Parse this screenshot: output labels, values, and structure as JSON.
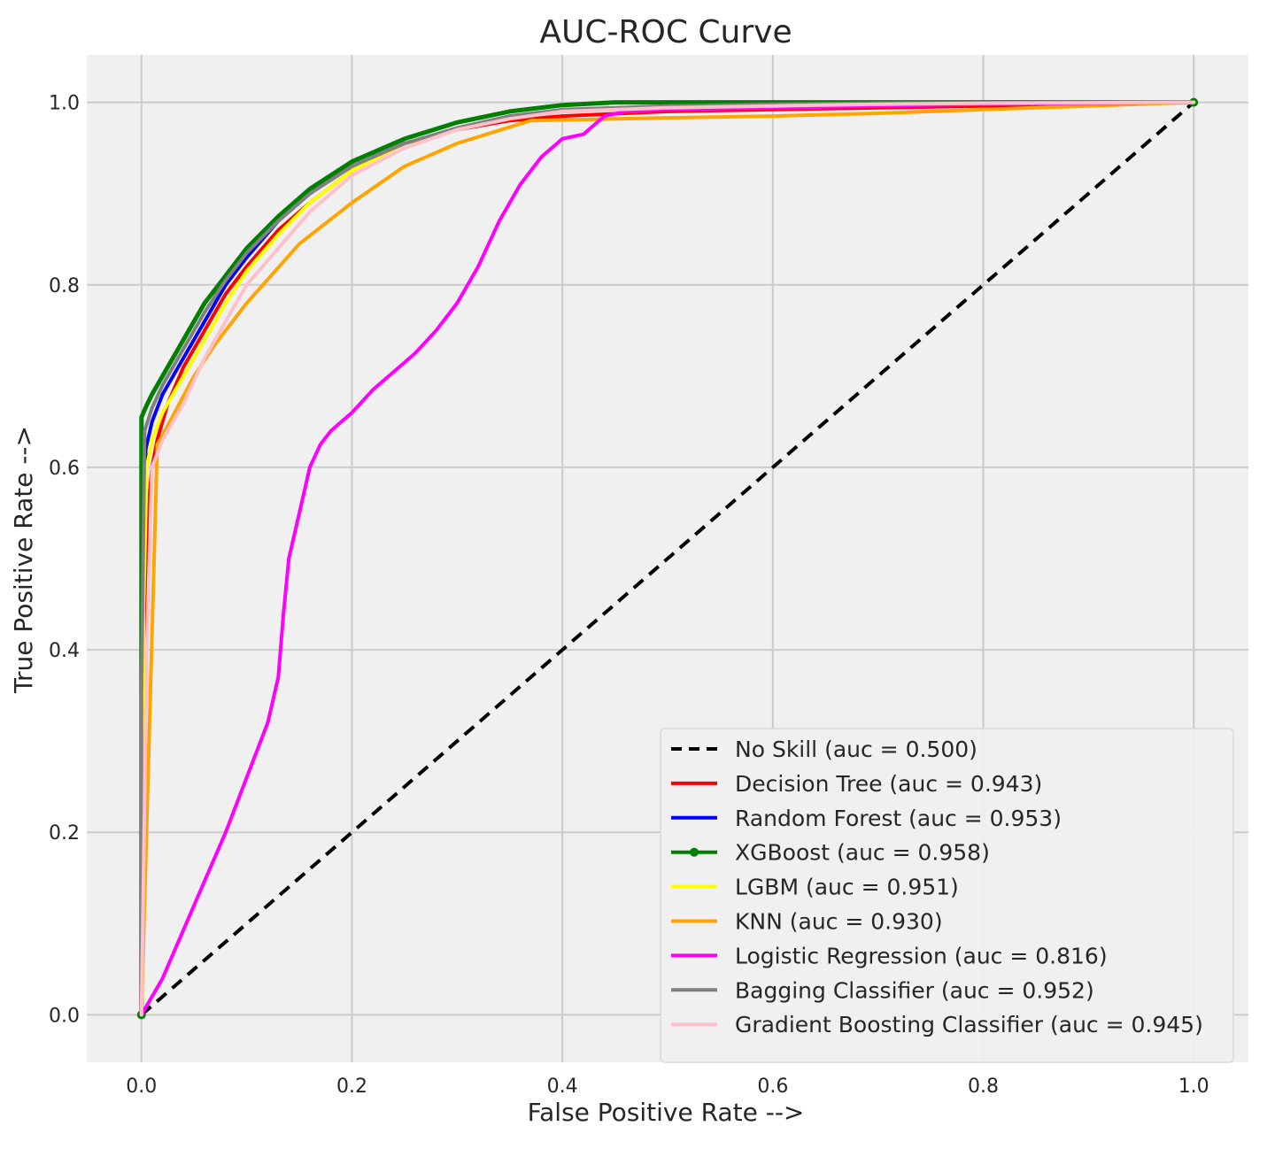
{
  "chart_data": {
    "type": "line",
    "title": "AUC-ROC Curve",
    "xlabel": "False Positive Rate -->",
    "ylabel": "True Positive Rate -->",
    "xlim": [
      -0.052,
      1.052
    ],
    "ylim": [
      -0.052,
      1.052
    ],
    "xticks": [
      "0.0",
      "0.2",
      "0.4",
      "0.6",
      "0.8",
      "1.0"
    ],
    "yticks": [
      "0.0",
      "0.2",
      "0.4",
      "0.6",
      "0.8",
      "1.0"
    ],
    "grid": true,
    "background": "#f0f0f0",
    "legend_position": "lower-right",
    "series": [
      {
        "name": "No Skill (auc = 0.500)",
        "color": "#000000",
        "style": "dashed",
        "x": [
          0,
          1
        ],
        "y": [
          0,
          1
        ]
      },
      {
        "name": "Decision Tree (auc = 0.943)",
        "color": "#ff0000",
        "style": "solid",
        "x": [
          0,
          0.003,
          0.006,
          0.01,
          0.015,
          0.025,
          0.04,
          0.06,
          0.08,
          0.1,
          0.13,
          0.16,
          0.2,
          0.25,
          0.3,
          0.35,
          0.4,
          0.5,
          0.6,
          0.7,
          0.8,
          0.9,
          1
        ],
        "y": [
          0,
          0.35,
          0.55,
          0.6,
          0.63,
          0.67,
          0.71,
          0.75,
          0.79,
          0.82,
          0.86,
          0.89,
          0.925,
          0.955,
          0.97,
          0.98,
          0.985,
          0.99,
          0.992,
          0.994,
          0.996,
          0.998,
          1
        ]
      },
      {
        "name": "Random Forest (auc = 0.953)",
        "color": "#0000ff",
        "style": "solid",
        "x": [
          0,
          0.002,
          0.004,
          0.01,
          0.02,
          0.04,
          0.06,
          0.08,
          0.1,
          0.13,
          0.16,
          0.2,
          0.25,
          0.3,
          0.35,
          0.4,
          0.5,
          0.6,
          0.7,
          0.8,
          0.9,
          1
        ],
        "y": [
          0,
          0.5,
          0.62,
          0.65,
          0.68,
          0.72,
          0.76,
          0.8,
          0.83,
          0.87,
          0.9,
          0.93,
          0.955,
          0.97,
          0.983,
          0.99,
          0.995,
          0.997,
          0.998,
          0.999,
          0.9995,
          1
        ]
      },
      {
        "name": "XGBoost (auc = 0.958)",
        "color": "#008000",
        "style": "solid-marker",
        "x": [
          0,
          0,
          0.005,
          0.01,
          0.02,
          0.04,
          0.06,
          0.08,
          0.1,
          0.13,
          0.16,
          0.2,
          0.25,
          0.3,
          0.35,
          0.4,
          0.45,
          0.5,
          0.6,
          0.7,
          0.8,
          0.9,
          1
        ],
        "y": [
          0,
          0.655,
          0.668,
          0.68,
          0.7,
          0.74,
          0.78,
          0.81,
          0.84,
          0.875,
          0.905,
          0.935,
          0.96,
          0.978,
          0.99,
          0.997,
          1,
          1,
          1,
          1,
          1,
          1,
          1
        ]
      },
      {
        "name": "LGBM (auc = 0.951)",
        "color": "#ffff00",
        "style": "solid",
        "x": [
          0,
          0.002,
          0.005,
          0.01,
          0.02,
          0.04,
          0.06,
          0.08,
          0.1,
          0.13,
          0.16,
          0.2,
          0.25,
          0.3,
          0.35,
          0.4,
          0.5,
          0.6,
          0.7,
          0.8,
          0.9,
          1
        ],
        "y": [
          0,
          0.45,
          0.6,
          0.63,
          0.66,
          0.7,
          0.74,
          0.78,
          0.815,
          0.855,
          0.89,
          0.925,
          0.955,
          0.97,
          0.983,
          0.99,
          0.995,
          0.997,
          0.998,
          0.999,
          0.9995,
          1
        ]
      },
      {
        "name": "KNN (auc = 0.930)",
        "color": "#ffa500",
        "style": "solid",
        "x": [
          0,
          0.015,
          0.02,
          0.05,
          0.07,
          0.1,
          0.15,
          0.2,
          0.25,
          0.3,
          0.37,
          0.5,
          0.6,
          0.7,
          0.8,
          0.9,
          1
        ],
        "y": [
          0,
          0.625,
          0.635,
          0.7,
          0.735,
          0.78,
          0.845,
          0.89,
          0.93,
          0.955,
          0.98,
          0.983,
          0.985,
          0.988,
          0.992,
          0.996,
          1
        ]
      },
      {
        "name": "Logistic Regression (auc = 0.816)",
        "color": "#ff00ff",
        "style": "solid",
        "x": [
          0,
          0.02,
          0.05,
          0.08,
          0.1,
          0.12,
          0.13,
          0.135,
          0.14,
          0.15,
          0.16,
          0.17,
          0.18,
          0.2,
          0.22,
          0.24,
          0.26,
          0.28,
          0.3,
          0.32,
          0.34,
          0.36,
          0.38,
          0.4,
          0.42,
          0.43,
          0.44,
          0.46,
          0.5,
          0.6,
          0.7,
          0.8,
          0.9,
          1
        ],
        "y": [
          0,
          0.04,
          0.12,
          0.2,
          0.26,
          0.32,
          0.37,
          0.44,
          0.5,
          0.55,
          0.6,
          0.625,
          0.64,
          0.66,
          0.685,
          0.705,
          0.725,
          0.75,
          0.78,
          0.82,
          0.87,
          0.91,
          0.94,
          0.96,
          0.965,
          0.975,
          0.985,
          0.99,
          0.992,
          0.994,
          0.996,
          0.998,
          0.999,
          1
        ]
      },
      {
        "name": "Bagging Classifier (auc = 0.952)",
        "color": "#808080",
        "style": "solid",
        "x": [
          0,
          0,
          0.003,
          0.01,
          0.02,
          0.04,
          0.06,
          0.08,
          0.1,
          0.13,
          0.16,
          0.2,
          0.25,
          0.3,
          0.35,
          0.4,
          0.5,
          0.6,
          0.7,
          0.8,
          0.9,
          1
        ],
        "y": [
          0,
          0.35,
          0.64,
          0.665,
          0.69,
          0.73,
          0.77,
          0.805,
          0.835,
          0.87,
          0.9,
          0.93,
          0.955,
          0.972,
          0.985,
          0.992,
          0.996,
          0.998,
          0.999,
          0.9995,
          0.9998,
          1
        ]
      },
      {
        "name": "Gradient Boosting Classifier (auc = 0.945)",
        "color": "#ffc0cb",
        "style": "solid",
        "x": [
          0,
          0.005,
          0.01,
          0.02,
          0.04,
          0.06,
          0.08,
          0.1,
          0.13,
          0.16,
          0.2,
          0.25,
          0.3,
          0.35,
          0.4,
          0.5,
          0.6,
          0.7,
          0.8,
          0.9,
          1
        ],
        "y": [
          0,
          0.4,
          0.6,
          0.63,
          0.67,
          0.72,
          0.76,
          0.8,
          0.84,
          0.88,
          0.92,
          0.95,
          0.97,
          0.982,
          0.99,
          0.994,
          0.996,
          0.998,
          0.999,
          0.9995,
          1
        ]
      }
    ]
  }
}
